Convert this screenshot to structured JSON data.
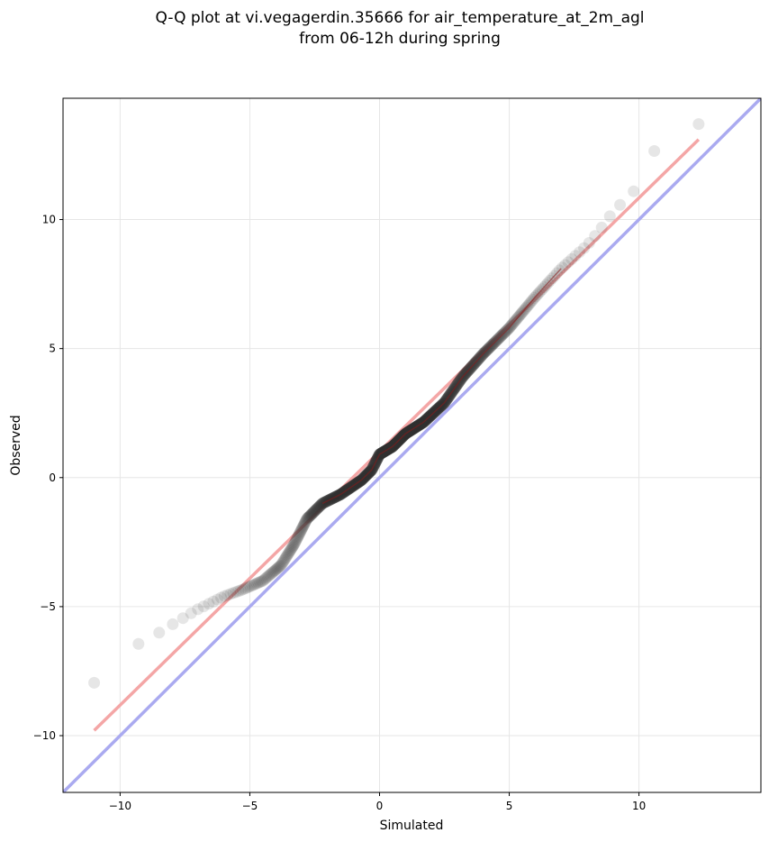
{
  "chart_data": {
    "type": "scatter",
    "title_line1": "Q-Q plot at vi.vegagerdin.35666 for air_temperature_at_2m_agl",
    "title_line2": "from 06-12h during spring",
    "xlabel": "Simulated",
    "ylabel": "Observed",
    "xlim": [
      -12.2,
      14.7
    ],
    "ylim": [
      -12.2,
      14.7
    ],
    "xticks": [
      -10,
      -5,
      0,
      5,
      10
    ],
    "yticks": [
      -10,
      -5,
      0,
      5,
      10
    ],
    "xtick_labels": [
      "−10",
      "−5",
      "0",
      "5",
      "10"
    ],
    "ytick_labels": [
      "−10",
      "−5",
      "0",
      "5",
      "10"
    ],
    "grid": true,
    "identity_line": {
      "color": "#aaaaf0",
      "from": [
        -12.2,
        -12.2
      ],
      "to": [
        14.7,
        14.7
      ]
    },
    "fit_line": {
      "color": "#f4a6a6",
      "from": [
        -11.0,
        -9.8
      ],
      "to": [
        12.3,
        13.1
      ]
    },
    "quantile_knots": [
      [
        -11.0,
        -7.95
      ],
      [
        -10.5,
        -7.7
      ],
      [
        -10.0,
        -7.3
      ],
      [
        -9.6,
        -6.8
      ],
      [
        -9.3,
        -6.45
      ],
      [
        -8.8,
        -6.2
      ],
      [
        -8.0,
        -5.7
      ],
      [
        -7.0,
        -5.1
      ],
      [
        -6.0,
        -4.6
      ],
      [
        -5.3,
        -4.35
      ],
      [
        -4.5,
        -4.0
      ],
      [
        -3.8,
        -3.4
      ],
      [
        -3.3,
        -2.6
      ],
      [
        -2.8,
        -1.6
      ],
      [
        -2.2,
        -1.0
      ],
      [
        -1.5,
        -0.65
      ],
      [
        -0.7,
        -0.1
      ],
      [
        -0.3,
        0.3
      ],
      [
        0.0,
        0.9
      ],
      [
        0.5,
        1.2
      ],
      [
        1.0,
        1.7
      ],
      [
        1.7,
        2.15
      ],
      [
        2.5,
        2.9
      ],
      [
        3.2,
        3.9
      ],
      [
        4.0,
        4.8
      ],
      [
        5.0,
        5.8
      ],
      [
        6.0,
        7.0
      ],
      [
        7.0,
        8.1
      ],
      [
        8.0,
        9.0
      ],
      [
        8.5,
        9.6
      ],
      [
        9.0,
        10.3
      ],
      [
        9.5,
        10.8
      ],
      [
        10.0,
        11.3
      ],
      [
        10.3,
        11.95
      ],
      [
        10.5,
        12.6
      ],
      [
        12.3,
        13.7
      ]
    ],
    "point_count": 900,
    "colors": {
      "points": "#333333",
      "grid": "#e6e6e6",
      "axes": "#000000"
    }
  }
}
